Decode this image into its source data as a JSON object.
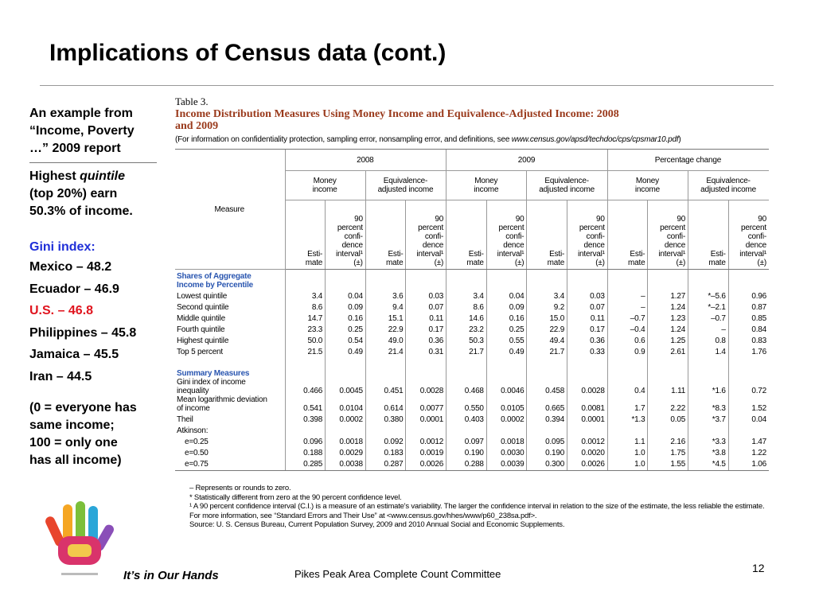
{
  "title": "Implications of Census data (cont.)",
  "sidebar": {
    "intro": "An example from\n“Income, Poverty\n…” 2009 report",
    "quintile": {
      "before": "Highest ",
      "em": "quintile",
      "after": "\n(top 20%) earn\n50.3% of income."
    },
    "gini_heading": "Gini index:",
    "gini_items": [
      "Mexico – 48.2",
      "Ecuador – 46.9",
      "U.S. – 46.8",
      "Philippines – 45.8",
      "Jamaica – 45.5",
      "Iran – 44.5"
    ],
    "scale_note": "(0 = everyone has\nsame income;\n100 = only one\nhas all income)"
  },
  "table": {
    "label": "Table 3.",
    "title": "Income Distribution Measures Using Money Income and Equivalence-Adjusted Income: 2008\nand 2009",
    "note": {
      "before": "(For information on confidentiality protection, sampling error, nonsampling error, and definitions, see ",
      "url": "www.census.gov/apsd/techdoc/cps/cpsmar10.pdf",
      "after": ")"
    },
    "header": {
      "measure": "Measure",
      "groups": [
        "2008",
        "2009",
        "Percentage change"
      ],
      "income_types": [
        "Money\nincome",
        "Equivalence-\nadjusted income"
      ],
      "estimate": "Esti-\nmate",
      "ci": "90\npercent\nconfi-\ndence\ninterval¹\n(±)"
    },
    "sections": [
      {
        "title": "Shares of Aggregate\nIncome by Percentile",
        "rows": [
          {
            "label": "Lowest quintile",
            "values": [
              "3.4",
              "0.04",
              "3.6",
              "0.03",
              "3.4",
              "0.04",
              "3.4",
              "0.03",
              "–",
              "1.27",
              "*–5.6",
              "0.96"
            ]
          },
          {
            "label": "Second quintile",
            "values": [
              "8.6",
              "0.09",
              "9.4",
              "0.07",
              "8.6",
              "0.09",
              "9.2",
              "0.07",
              "–",
              "1.24",
              "*–2.1",
              "0.87"
            ]
          },
          {
            "label": "Middle quintile",
            "values": [
              "14.7",
              "0.16",
              "15.1",
              "0.11",
              "14.6",
              "0.16",
              "15.0",
              "0.11",
              "–0.7",
              "1.23",
              "–0.7",
              "0.85"
            ]
          },
          {
            "label": "Fourth quintile",
            "values": [
              "23.3",
              "0.25",
              "22.9",
              "0.17",
              "23.2",
              "0.25",
              "22.9",
              "0.17",
              "–0.4",
              "1.24",
              "–",
              "0.84"
            ]
          },
          {
            "label": "Highest quintile",
            "values": [
              "50.0",
              "0.54",
              "49.0",
              "0.36",
              "50.3",
              "0.55",
              "49.4",
              "0.36",
              "0.6",
              "1.25",
              "0.8",
              "0.83"
            ]
          },
          {
            "label": "Top 5 percent",
            "values": [
              "21.5",
              "0.49",
              "21.4",
              "0.31",
              "21.7",
              "0.49",
              "21.7",
              "0.33",
              "0.9",
              "2.61",
              "1.4",
              "1.76"
            ]
          }
        ]
      },
      {
        "title": "Summary Measures",
        "rows": [
          {
            "label": "Gini index of income\ninequality",
            "values": [
              "0.466",
              "0.0045",
              "0.451",
              "0.0028",
              "0.468",
              "0.0046",
              "0.458",
              "0.0028",
              "0.4",
              "1.11",
              "*1.6",
              "0.72"
            ]
          },
          {
            "label": "Mean logarithmic deviation\nof income",
            "values": [
              "0.541",
              "0.0104",
              "0.614",
              "0.0077",
              "0.550",
              "0.0105",
              "0.665",
              "0.0081",
              "1.7",
              "2.22",
              "*8.3",
              "1.52"
            ]
          },
          {
            "label": "Theil",
            "values": [
              "0.398",
              "0.0002",
              "0.380",
              "0.0001",
              "0.403",
              "0.0002",
              "0.394",
              "0.0001",
              "*1.3",
              "0.05",
              "*3.7",
              "0.04"
            ]
          },
          {
            "label": "Atkinson:",
            "rows": [
              {
                "label": "e=0.25",
                "values": [
                  "0.096",
                  "0.0018",
                  "0.092",
                  "0.0012",
                  "0.097",
                  "0.0018",
                  "0.095",
                  "0.0012",
                  "1.1",
                  "2.16",
                  "*3.3",
                  "1.47"
                ]
              },
              {
                "label": "e=0.50",
                "values": [
                  "0.188",
                  "0.0029",
                  "0.183",
                  "0.0019",
                  "0.190",
                  "0.0030",
                  "0.190",
                  "0.0020",
                  "1.0",
                  "1.75",
                  "*3.8",
                  "1.22"
                ]
              },
              {
                "label": "e=0.75",
                "values": [
                  "0.285",
                  "0.0038",
                  "0.287",
                  "0.0026",
                  "0.288",
                  "0.0039",
                  "0.300",
                  "0.0026",
                  "1.0",
                  "1.55",
                  "*4.5",
                  "1.06"
                ]
              }
            ]
          }
        ]
      }
    ],
    "footnotes": [
      "– Represents or rounds to zero.",
      "* Statistically different from zero at the 90 percent confidence level.",
      "¹ A 90 percent confidence interval (C.I.) is a measure of an estimate's variability. The larger the confidence interval in relation to the size of the estimate, the less reliable the estimate. For more information, see “Standard Errors and Their Use” at <www.census.gov/hhes/www/p60_238sa.pdf>."
    ],
    "source": "Source: U. S. Census Bureau, Current Population Survey, 2009 and 2010 Annual Social and Economic Supplements."
  },
  "footer": {
    "tagline": "It’s in Our Hands",
    "organization": "Pikes Peak Area Complete Count Committee",
    "page": "12"
  }
}
